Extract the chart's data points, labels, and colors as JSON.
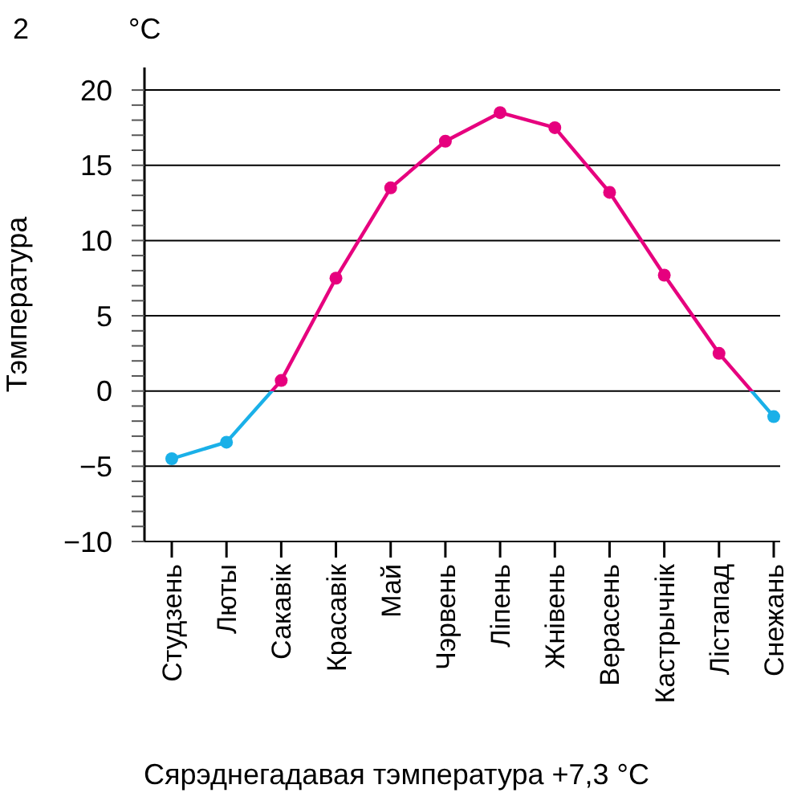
{
  "chart_data": {
    "type": "line",
    "ylabel": "Тэмпература",
    "annotations": [
      "2",
      "°C",
      "Сярэднегадавая тэмпература +7,3 °C"
    ],
    "categories": [
      "Студзень",
      "Люты",
      "Сакавік",
      "Красавік",
      "Май",
      "Чэрвень",
      "Ліпень",
      "Жнівень",
      "Верасень",
      "Кастрычнік",
      "Лістапад",
      "Снежань"
    ],
    "series": [
      {
        "color": "#e6007e",
        "colors": [
          "#1ab0e8",
          "#1ab0e8",
          "#e6007e",
          "#e6007e",
          "#e6007e",
          "#e6007e",
          "#e6007e",
          "#e6007e",
          "#e6007e",
          "#e6007e",
          "#e6007e",
          "#1ab0e8"
        ],
        "values": [
          -4.5,
          -3.4,
          0.7,
          7.5,
          13.5,
          16.6,
          18.5,
          17.5,
          13.2,
          7.7,
          2.5,
          -1.7
        ]
      }
    ],
    "ylim": [
      -10,
      21.5
    ],
    "yticks": [
      -10,
      {
        "value": -9,
        "label": null
      },
      {
        "value": -8,
        "label": null
      },
      {
        "value": -7,
        "label": null
      },
      {
        "value": -6,
        "label": null
      },
      -5,
      {
        "value": -4,
        "label": null
      },
      {
        "value": -3,
        "label": null
      },
      {
        "value": -2,
        "label": null
      },
      {
        "value": -1,
        "label": null
      },
      0,
      {
        "value": 1,
        "label": null
      },
      {
        "value": 2,
        "label": null
      },
      {
        "value": 3,
        "label": null
      },
      {
        "value": 4,
        "label": null
      },
      5,
      {
        "value": 6,
        "label": null
      },
      {
        "value": 7,
        "label": null
      },
      {
        "value": 8,
        "label": null
      },
      {
        "value": 9,
        "label": null
      },
      10,
      {
        "value": 11,
        "label": null
      },
      {
        "value": 12,
        "label": null
      },
      {
        "value": 13,
        "label": null
      },
      {
        "value": 14,
        "label": null
      },
      15,
      {
        "value": 16,
        "label": null
      },
      {
        "value": 17,
        "label": null
      },
      {
        "value": 18,
        "label": null
      },
      {
        "value": 19,
        "label": null
      },
      20
    ],
    "grid": "y",
    "marker": "circle",
    "line_style": "solid"
  }
}
